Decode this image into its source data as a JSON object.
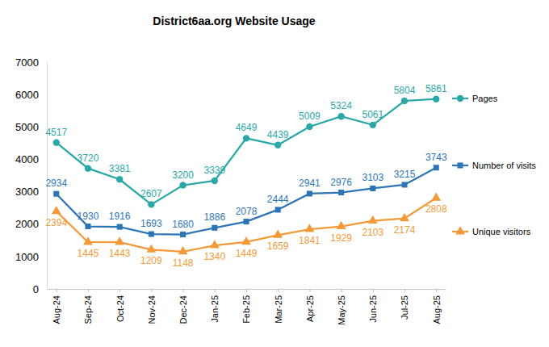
{
  "chart_data": {
    "type": "line",
    "title": "District6aa.org Website Usage",
    "categories": [
      "Aug-24",
      "Sep-24",
      "Oct-24",
      "Nov-24",
      "Dec-24",
      "Jan-25",
      "Feb-25",
      "Mar-25",
      "Apr-25",
      "May-25",
      "Jun-25",
      "Jul-25",
      "Aug-25"
    ],
    "series": [
      {
        "name": "Pages",
        "color": "#2aa8a8",
        "marker": "circle",
        "values": [
          4517,
          3720,
          3381,
          2607,
          3200,
          3339,
          4649,
          4439,
          5009,
          5324,
          5061,
          5804,
          5861
        ]
      },
      {
        "name": "Number of visits",
        "color": "#2e75b6",
        "marker": "square",
        "values": [
          2934,
          1930,
          1916,
          1693,
          1680,
          1886,
          2078,
          2444,
          2941,
          2976,
          3103,
          3215,
          3743
        ]
      },
      {
        "name": "Unique visitors",
        "color": "#f29a38",
        "marker": "triangle",
        "values": [
          2394,
          1445,
          1443,
          1209,
          1148,
          1340,
          1449,
          1659,
          1841,
          1929,
          2103,
          2174,
          2808
        ]
      }
    ],
    "ylim": [
      0,
      7000
    ],
    "yticks": [
      0,
      1000,
      2000,
      3000,
      4000,
      5000,
      6000,
      7000
    ],
    "grid": false,
    "legend": "right",
    "data_labels": true
  }
}
